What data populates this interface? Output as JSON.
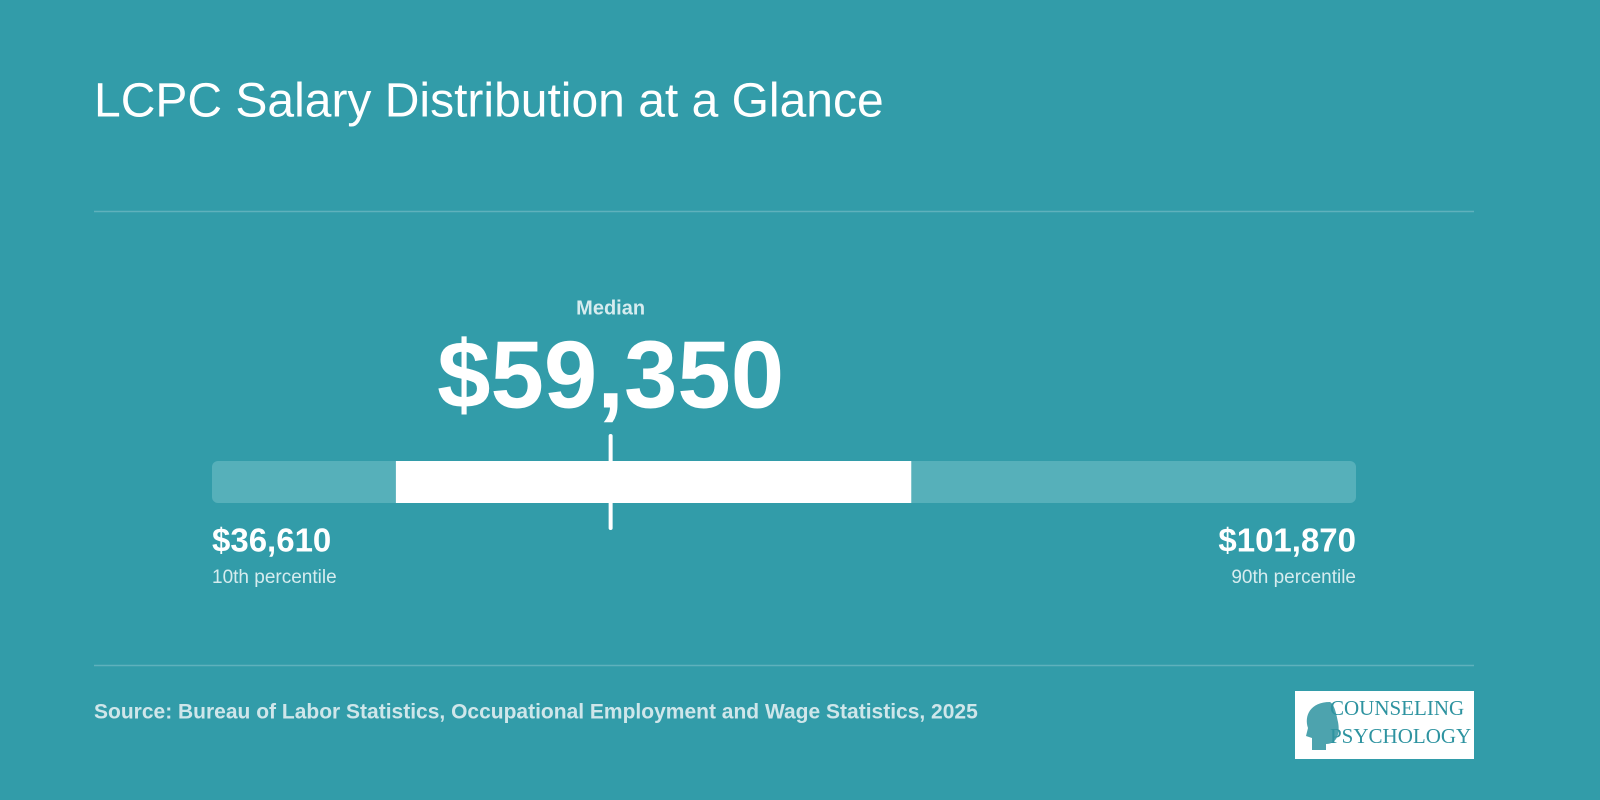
{
  "chart_data": {
    "type": "range",
    "title": "LCPC Salary Distribution at a Glance",
    "categories": [
      "10th percentile",
      "Median",
      "90th percentile"
    ],
    "values": [
      36610,
      59350,
      101870
    ],
    "value_labels": [
      "$36,610",
      "$59,350",
      "$101,870"
    ],
    "box": [
      47100,
      76500
    ],
    "track_color": "#56b0ba",
    "box_color": "#ffffff",
    "source": "Source: Bureau of Labor Statistics, Occupational Employment and Wage Statistics, 2025"
  },
  "logo": {
    "line1": "COUNSELING",
    "line2": "PSYCHOLOGY"
  }
}
